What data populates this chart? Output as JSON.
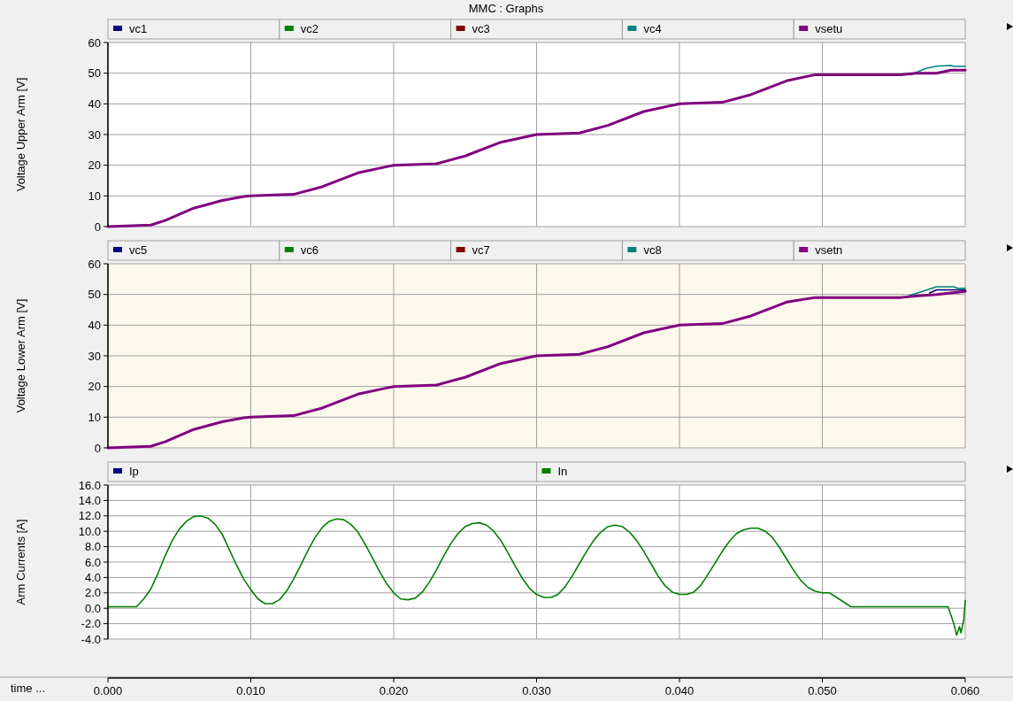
{
  "chart_data": [
    {
      "type": "line",
      "title": "MMC : Graphs",
      "ylabel": "Voltage Upper Arm [V]",
      "xlim": [
        0,
        0.06
      ],
      "xticks": [
        0,
        0.01,
        0.02,
        0.03,
        0.04,
        0.05,
        0.06
      ],
      "ylim": [
        0,
        60
      ],
      "yticks": [
        0,
        10,
        20,
        30,
        40,
        50,
        60
      ],
      "grid": true,
      "legend": "top",
      "tick_labels": "y",
      "marker": "none",
      "line_style": "solid",
      "series": [
        {
          "name": "vc1",
          "color": "#000080"
        },
        {
          "name": "vc2",
          "color": "#008000"
        },
        {
          "name": "vc3",
          "color": "#800000"
        },
        {
          "name": "vc4",
          "color": "#008080",
          "x": [
            0.0562,
            0.0572,
            0.058,
            0.059,
            0.0592,
            0.06
          ],
          "values": [
            49.5,
            51.5,
            52.3,
            52.5,
            52.2,
            52.2
          ]
        },
        {
          "name": "vsetu",
          "color": "#800080",
          "x": [
            0,
            0.003,
            0.004,
            0.006,
            0.008,
            0.0095,
            0.01,
            0.013,
            0.015,
            0.0175,
            0.0195,
            0.02,
            0.023,
            0.025,
            0.0275,
            0.0295,
            0.03,
            0.033,
            0.035,
            0.0375,
            0.0395,
            0.04,
            0.043,
            0.045,
            0.0475,
            0.0495,
            0.05,
            0.0555,
            0.0565,
            0.058,
            0.059,
            0.06
          ],
          "values": [
            0,
            0.5,
            2,
            6,
            8.5,
            9.8,
            10,
            10.5,
            13,
            17.5,
            19.5,
            20,
            20.5,
            23,
            27.5,
            29.5,
            30,
            30.5,
            33,
            37.5,
            39.5,
            40,
            40.5,
            43,
            47.5,
            49.5,
            49.5,
            49.5,
            50,
            50,
            51,
            51
          ]
        }
      ]
    },
    {
      "type": "line",
      "ylabel": "Voltage Lower Arm [V]",
      "xlim": [
        0,
        0.06
      ],
      "xticks": [
        0,
        0.01,
        0.02,
        0.03,
        0.04,
        0.05,
        0.06
      ],
      "ylim": [
        0,
        60
      ],
      "yticks": [
        0,
        10,
        20,
        30,
        40,
        50,
        60
      ],
      "grid": true,
      "legend": "top",
      "tick_labels": "y",
      "marker": "none",
      "line_style": "solid",
      "series": [
        {
          "name": "vc5",
          "color": "#000080",
          "x": [
            0.0575,
            0.058,
            0.0593,
            0.06
          ],
          "values": [
            50.5,
            51.5,
            51.5,
            51.5
          ]
        },
        {
          "name": "vc6",
          "color": "#008000"
        },
        {
          "name": "vc7",
          "color": "#800000"
        },
        {
          "name": "vc8",
          "color": "#008080",
          "x": [
            0.056,
            0.057,
            0.058,
            0.0592,
            0.0595,
            0.06
          ],
          "values": [
            49.5,
            51,
            52.5,
            52.5,
            52,
            52
          ]
        },
        {
          "name": "vsetn",
          "color": "#800080",
          "x": [
            0,
            0.003,
            0.004,
            0.006,
            0.008,
            0.0095,
            0.01,
            0.013,
            0.015,
            0.0175,
            0.0195,
            0.02,
            0.023,
            0.025,
            0.0275,
            0.0295,
            0.03,
            0.033,
            0.035,
            0.0375,
            0.0395,
            0.04,
            0.043,
            0.045,
            0.0475,
            0.0495,
            0.05,
            0.0555,
            0.0565,
            0.058,
            0.059,
            0.06
          ],
          "values": [
            0,
            0.5,
            2,
            6,
            8.5,
            9.8,
            10,
            10.5,
            13,
            17.5,
            19.5,
            20,
            20.5,
            23,
            27.5,
            29.5,
            30,
            30.5,
            33,
            37.5,
            39.5,
            40,
            40.5,
            43,
            47.5,
            49,
            49,
            49,
            49.5,
            50,
            50.5,
            51
          ]
        }
      ]
    },
    {
      "type": "line",
      "ylabel": "Arm Currents [A]",
      "xlabel": "time ...",
      "xlim": [
        0,
        0.06
      ],
      "xticks": [
        {
          "value": 0,
          "label": "0.000"
        },
        {
          "value": 0.01,
          "label": "0.010"
        },
        {
          "value": 0.02,
          "label": "0.020"
        },
        {
          "value": 0.03,
          "label": "0.030"
        },
        {
          "value": 0.04,
          "label": "0.040"
        },
        {
          "value": 0.05,
          "label": "0.050"
        },
        {
          "value": 0.06,
          "label": "0.060"
        }
      ],
      "ylim": [
        -4,
        16
      ],
      "yticks": [
        {
          "value": -4,
          "label": "-4.0"
        },
        {
          "value": -2,
          "label": "-2.0"
        },
        {
          "value": 0,
          "label": "0.0"
        },
        {
          "value": 2,
          "label": "2.0"
        },
        {
          "value": 4,
          "label": "4.0"
        },
        {
          "value": 6,
          "label": "6.0"
        },
        {
          "value": 8,
          "label": "8.0"
        },
        {
          "value": 10,
          "label": "10.0"
        },
        {
          "value": 12,
          "label": "12.0"
        },
        {
          "value": 14,
          "label": "14.0"
        },
        {
          "value": 16,
          "label": "16.0"
        }
      ],
      "grid": true,
      "legend": "top",
      "marker": "none",
      "line_style": "solid",
      "series": [
        {
          "name": "Ip",
          "color": "#000080"
        },
        {
          "name": "In",
          "color": "#008000",
          "x": [
            0,
            0.002,
            0.0025,
            0.003,
            0.0035,
            0.004,
            0.0045,
            0.005,
            0.0055,
            0.006,
            0.0065,
            0.007,
            0.0075,
            0.008,
            0.0085,
            0.009,
            0.0095,
            0.01,
            0.0105,
            0.011,
            0.0115,
            0.012,
            0.0125,
            0.013,
            0.0135,
            0.014,
            0.0145,
            0.015,
            0.0155,
            0.016,
            0.0165,
            0.017,
            0.0175,
            0.018,
            0.0185,
            0.019,
            0.0195,
            0.02,
            0.0205,
            0.021,
            0.0215,
            0.022,
            0.0225,
            0.023,
            0.0235,
            0.024,
            0.0245,
            0.025,
            0.0255,
            0.026,
            0.0265,
            0.027,
            0.0275,
            0.028,
            0.0285,
            0.029,
            0.0295,
            0.03,
            0.0305,
            0.031,
            0.0315,
            0.032,
            0.0325,
            0.033,
            0.0335,
            0.034,
            0.0345,
            0.035,
            0.0355,
            0.036,
            0.0365,
            0.037,
            0.0375,
            0.038,
            0.0385,
            0.039,
            0.0395,
            0.04,
            0.0405,
            0.041,
            0.0415,
            0.042,
            0.0425,
            0.043,
            0.0435,
            0.044,
            0.0445,
            0.045,
            0.0455,
            0.046,
            0.0465,
            0.047,
            0.0475,
            0.048,
            0.0485,
            0.049,
            0.0495,
            0.05,
            0.0505,
            0.051,
            0.0515,
            0.052,
            0.0588,
            0.0592,
            0.0594,
            0.0596,
            0.0597,
            0.0599,
            0.06
          ],
          "values": [
            0.2,
            0.2,
            1.2,
            2.5,
            4.5,
            6.8,
            8.8,
            10.3,
            11.3,
            11.9,
            12.0,
            11.7,
            10.9,
            9.6,
            7.6,
            5.6,
            3.8,
            2.4,
            1.2,
            0.6,
            0.6,
            1.1,
            2.2,
            3.8,
            5.6,
            7.5,
            9.2,
            10.5,
            11.3,
            11.6,
            11.5,
            10.9,
            9.9,
            8.3,
            6.6,
            4.8,
            3.2,
            2.0,
            1.2,
            1.1,
            1.3,
            2.1,
            3.4,
            5.0,
            6.8,
            8.4,
            9.7,
            10.6,
            11.0,
            11.1,
            10.8,
            10.0,
            8.8,
            7.2,
            5.5,
            3.9,
            2.6,
            1.8,
            1.4,
            1.4,
            1.8,
            2.8,
            4.2,
            5.8,
            7.4,
            8.8,
            9.9,
            10.6,
            10.8,
            10.6,
            9.9,
            8.8,
            7.4,
            5.8,
            4.2,
            2.9,
            2.1,
            1.8,
            1.8,
            2.1,
            3.0,
            4.4,
            5.9,
            7.4,
            8.7,
            9.7,
            10.2,
            10.4,
            10.4,
            10.0,
            9.2,
            7.9,
            6.4,
            4.9,
            3.6,
            2.7,
            2.2,
            2.0,
            2.0,
            1.4,
            0.8,
            0.2,
            0.2,
            -2.0,
            -3.5,
            -2.4,
            -3.2,
            -1.5,
            1.0
          ]
        }
      ]
    }
  ]
}
